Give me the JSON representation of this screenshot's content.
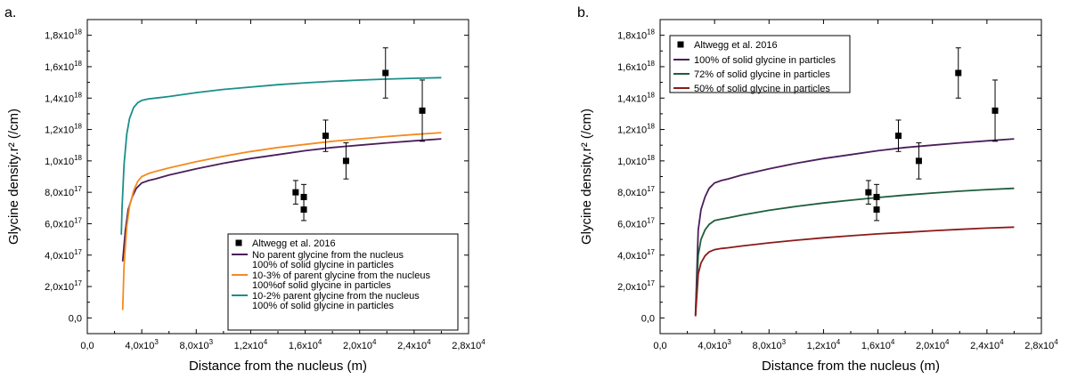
{
  "chart_data": [
    {
      "panel": "a.",
      "type": "line",
      "xlabel": "Distance from the nucleus (m)",
      "ylabel": "Glycine density.r² (/cm)",
      "xlim": [
        0,
        28000
      ],
      "ylim": [
        -1e+17,
        1.9e+18
      ],
      "x_ticks": [
        {
          "value": 0,
          "base": "0,0",
          "exp": ""
        },
        {
          "value": 4000,
          "base": "4,0x10",
          "exp": "3"
        },
        {
          "value": 8000,
          "base": "8,0x10",
          "exp": "3"
        },
        {
          "value": 12000,
          "base": "1,2x10",
          "exp": "4"
        },
        {
          "value": 16000,
          "base": "1,6x10",
          "exp": "4"
        },
        {
          "value": 20000,
          "base": "2,0x10",
          "exp": "4"
        },
        {
          "value": 24000,
          "base": "2,4x10",
          "exp": "4"
        },
        {
          "value": 28000,
          "base": "2,8x10",
          "exp": "4"
        }
      ],
      "y_ticks": [
        {
          "value": 0,
          "base": "0,0",
          "exp": ""
        },
        {
          "value": 2e+17,
          "base": "2,0x10",
          "exp": "17"
        },
        {
          "value": 4e+17,
          "base": "4,0x10",
          "exp": "17"
        },
        {
          "value": 6e+17,
          "base": "6,0x10",
          "exp": "17"
        },
        {
          "value": 8e+17,
          "base": "8,0x10",
          "exp": "17"
        },
        {
          "value": 1e+18,
          "base": "1,0x10",
          "exp": "18"
        },
        {
          "value": 1.2e+18,
          "base": "1,2x10",
          "exp": "18"
        },
        {
          "value": 1.4e+18,
          "base": "1,4x10",
          "exp": "18"
        },
        {
          "value": 1.6e+18,
          "base": "1,6x10",
          "exp": "18"
        },
        {
          "value": 1.8e+18,
          "base": "1,8x10",
          "exp": "18"
        }
      ],
      "legend_position": "bottom-right",
      "scatter": {
        "name": "Altwegg et al. 2016",
        "points": [
          {
            "x": 15300,
            "y": 8e+17,
            "err": 7.5e+16
          },
          {
            "x": 15900,
            "y": 7.7e+17,
            "err": 8e+16
          },
          {
            "x": 15900,
            "y": 6.9e+17,
            "err": 7e+16
          },
          {
            "x": 17500,
            "y": 1.16e+18,
            "err": 1e+17
          },
          {
            "x": 19000,
            "y": 1e+18,
            "err": 1.15e+17
          },
          {
            "x": 21900,
            "y": 1.56e+18,
            "err": 1.6e+17
          },
          {
            "x": 24600,
            "y": 1.32e+18,
            "err": 1.95e+17
          }
        ]
      },
      "series": [
        {
          "name_lines": [
            "No parent glycine from the nucleus",
            "100% of solid glycine in particles"
          ],
          "color": "#4b1e5a",
          "x": [
            2600,
            2800,
            3000,
            3300,
            3600,
            4000,
            4500,
            5000,
            6000,
            8000,
            10000,
            12000,
            14000,
            16000,
            18000,
            20000,
            22000,
            24000,
            26000
          ],
          "y": [
            3.6e+17,
            5.6e+17,
            6.9e+17,
            7.7e+17,
            8.25e+17,
            8.6e+17,
            8.75e+17,
            8.85e+17,
            9.1e+17,
            9.5e+17,
            9.85e+17,
            1.015e+18,
            1.04e+18,
            1.065e+18,
            1.085e+18,
            1.1e+18,
            1.115e+18,
            1.128e+18,
            1.14e+18
          ]
        },
        {
          "name_lines": [
            "10-3% of parent glycine from the nucleus",
            "100%of solid glycine in particles"
          ],
          "color": "#f58a1f",
          "x": [
            2600,
            2700,
            2900,
            3100,
            3400,
            3700,
            4000,
            4500,
            5000,
            6000,
            8000,
            10000,
            12000,
            14000,
            16000,
            18000,
            20000,
            22000,
            24000,
            26000
          ],
          "y": [
            5e+16,
            3.4e+17,
            5.8e+17,
            7.1e+17,
            8.1e+17,
            8.7e+17,
            9e+17,
            9.2e+17,
            9.33e+17,
            9.55e+17,
            9.95e+17,
            1.03e+18,
            1.06e+18,
            1.085e+18,
            1.105e+18,
            1.125e+18,
            1.14e+18,
            1.155e+18,
            1.168e+18,
            1.18e+18
          ]
        },
        {
          "name_lines": [
            "10-2% parent glycine from the nucleus",
            "100% of solid glycine in particles"
          ],
          "color": "#1a8f8a",
          "x": [
            2500,
            2550,
            2700,
            2900,
            3100,
            3400,
            3700,
            4000,
            4500,
            5000,
            6000,
            8000,
            10000,
            12000,
            14000,
            16000,
            18000,
            20000,
            22000,
            24000,
            26000
          ],
          "y": [
            5.3e+17,
            7e+17,
            9.8e+17,
            1.17e+18,
            1.27e+18,
            1.34e+18,
            1.37e+18,
            1.385e+18,
            1.395e+18,
            1.4e+18,
            1.41e+18,
            1.435e+18,
            1.455e+18,
            1.47e+18,
            1.485e+18,
            1.497e+18,
            1.507e+18,
            1.515e+18,
            1.521e+18,
            1.526e+18,
            1.53e+18
          ]
        }
      ]
    },
    {
      "panel": "b.",
      "type": "line",
      "xlabel": "Distance from the nucleus (m)",
      "ylabel": "Glycine density.r² (/cm)",
      "xlim": [
        0,
        28000
      ],
      "ylim": [
        -1e+17,
        1.9e+18
      ],
      "x_ticks": [
        {
          "value": 0,
          "base": "0,0",
          "exp": ""
        },
        {
          "value": 4000,
          "base": "4,0x10",
          "exp": "3"
        },
        {
          "value": 8000,
          "base": "8,0x10",
          "exp": "3"
        },
        {
          "value": 12000,
          "base": "1,2x10",
          "exp": "4"
        },
        {
          "value": 16000,
          "base": "1,6x10",
          "exp": "4"
        },
        {
          "value": 20000,
          "base": "2,0x10",
          "exp": "4"
        },
        {
          "value": 24000,
          "base": "2,4x10",
          "exp": "4"
        },
        {
          "value": 28000,
          "base": "2,8x10",
          "exp": "4"
        }
      ],
      "y_ticks": [
        {
          "value": 0,
          "base": "0,0",
          "exp": ""
        },
        {
          "value": 2e+17,
          "base": "2,0x10",
          "exp": "17"
        },
        {
          "value": 4e+17,
          "base": "4,0x10",
          "exp": "17"
        },
        {
          "value": 6e+17,
          "base": "6,0x10",
          "exp": "17"
        },
        {
          "value": 8e+17,
          "base": "8,0x10",
          "exp": "17"
        },
        {
          "value": 1e+18,
          "base": "1,0x10",
          "exp": "18"
        },
        {
          "value": 1.2e+18,
          "base": "1,2x10",
          "exp": "18"
        },
        {
          "value": 1.4e+18,
          "base": "1,4x10",
          "exp": "18"
        },
        {
          "value": 1.6e+18,
          "base": "1,6x10",
          "exp": "18"
        },
        {
          "value": 1.8e+18,
          "base": "1,8x10",
          "exp": "18"
        }
      ],
      "legend_position": "top-left",
      "scatter": {
        "name": "Altwegg et al. 2016",
        "points": [
          {
            "x": 15300,
            "y": 8e+17,
            "err": 7.5e+16
          },
          {
            "x": 15900,
            "y": 7.7e+17,
            "err": 8e+16
          },
          {
            "x": 15900,
            "y": 6.9e+17,
            "err": 7e+16
          },
          {
            "x": 17500,
            "y": 1.16e+18,
            "err": 1e+17
          },
          {
            "x": 19000,
            "y": 1e+18,
            "err": 1.15e+17
          },
          {
            "x": 21900,
            "y": 1.56e+18,
            "err": 1.6e+17
          },
          {
            "x": 24600,
            "y": 1.32e+18,
            "err": 1.95e+17
          }
        ]
      },
      "series": [
        {
          "name_lines": [
            "100% of solid glycine in particles"
          ],
          "color": "#4b1e5a",
          "x": [
            2600,
            2800,
            3000,
            3300,
            3600,
            4000,
            4500,
            5000,
            6000,
            8000,
            10000,
            12000,
            14000,
            16000,
            18000,
            20000,
            22000,
            24000,
            26000
          ],
          "y": [
            2e+16,
            5.6e+17,
            6.9e+17,
            7.7e+17,
            8.25e+17,
            8.6e+17,
            8.75e+17,
            8.85e+17,
            9.1e+17,
            9.5e+17,
            9.85e+17,
            1.015e+18,
            1.04e+18,
            1.065e+18,
            1.085e+18,
            1.1e+18,
            1.115e+18,
            1.128e+18,
            1.14e+18
          ]
        },
        {
          "name_lines": [
            "72% of solid glycine in particles"
          ],
          "color": "#1e5e3c",
          "x": [
            2600,
            2800,
            3000,
            3300,
            3600,
            4000,
            4500,
            5000,
            6000,
            8000,
            10000,
            12000,
            14000,
            16000,
            18000,
            20000,
            22000,
            24000,
            26000
          ],
          "y": [
            1.5e+16,
            4e+17,
            5e+17,
            5.6e+17,
            5.95e+17,
            6.2e+17,
            6.3e+17,
            6.37e+17,
            6.55e+17,
            6.85e+17,
            7.1e+17,
            7.32e+17,
            7.5e+17,
            7.67e+17,
            7.82e+17,
            7.95e+17,
            8.07e+17,
            8.17e+17,
            8.25e+17
          ]
        },
        {
          "name_lines": [
            "50% of solid glycine in particles"
          ],
          "color": "#8b1a1a",
          "x": [
            2600,
            2800,
            3000,
            3300,
            3600,
            4000,
            4500,
            5000,
            6000,
            8000,
            10000,
            12000,
            14000,
            16000,
            18000,
            20000,
            22000,
            24000,
            26000
          ],
          "y": [
            1e+16,
            2.8e+17,
            3.5e+17,
            3.95e+17,
            4.2e+17,
            4.35e+17,
            4.42e+17,
            4.47e+17,
            4.58e+17,
            4.78e+17,
            4.95e+17,
            5.1e+17,
            5.23e+17,
            5.35e+17,
            5.45e+17,
            5.55e+17,
            5.64e+17,
            5.72e+17,
            5.78e+17
          ]
        }
      ]
    }
  ]
}
